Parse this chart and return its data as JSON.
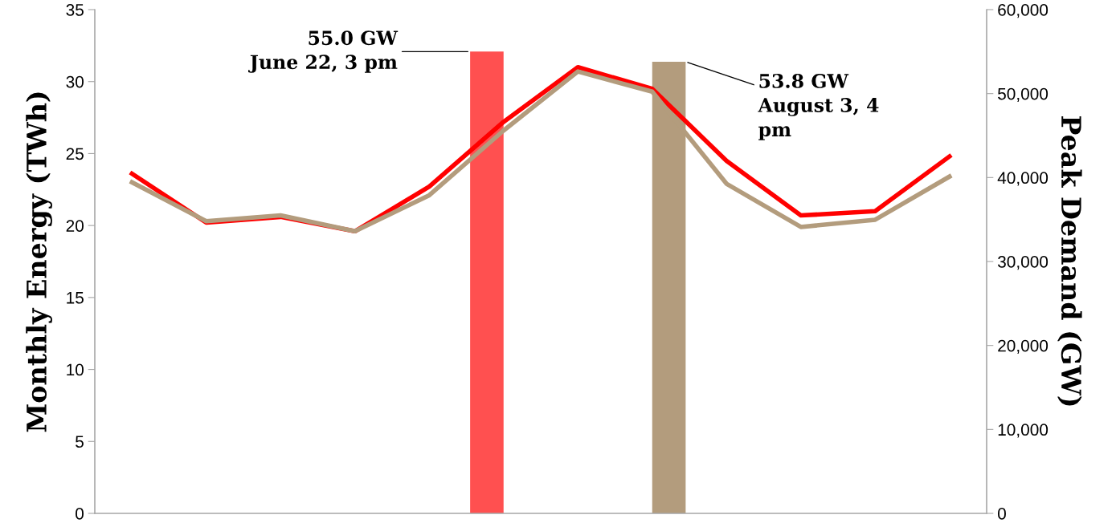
{
  "chart_data": {
    "type": "line",
    "ylabel": "Monthly Energy (TWh)",
    "y2label": "Peak Demand (GW)",
    "categories": [
      null,
      null,
      null,
      null,
      null,
      null,
      null,
      null,
      null,
      null,
      null,
      null
    ],
    "series": [
      {
        "type": "bar",
        "axis": "y2",
        "color": "#ff5050",
        "values": [
          null,
          null,
          null,
          null,
          null,
          55000,
          null,
          null,
          null,
          null,
          null,
          null
        ]
      },
      {
        "type": "bar",
        "axis": "y2",
        "color": "#b39c7d",
        "values": [
          null,
          null,
          null,
          null,
          null,
          null,
          null,
          53800,
          null,
          null,
          null,
          null
        ]
      },
      {
        "color": "#ff0000",
        "values": [
          23.6,
          20.2,
          20.6,
          19.6,
          22.7,
          27.2,
          31.0,
          29.5,
          24.5,
          20.7,
          21.0,
          24.8
        ]
      },
      {
        "color": "#b39c7d",
        "values": [
          23.0,
          20.3,
          20.7,
          19.6,
          22.1,
          26.6,
          30.7,
          29.3,
          22.9,
          19.9,
          20.4,
          23.4
        ]
      }
    ],
    "ylim": [
      0,
      35
    ],
    "yticks": [
      0,
      5,
      10,
      15,
      20,
      25,
      30,
      35
    ],
    "y2lim": [
      0,
      60000
    ],
    "y2ticks": [
      {
        "value": 0,
        "label": "0"
      },
      {
        "value": 10000,
        "label": "10,000"
      },
      {
        "value": 20000,
        "label": "20,000"
      },
      {
        "value": 30000,
        "label": "30,000"
      },
      {
        "value": 40000,
        "label": "40,000"
      },
      {
        "value": 50000,
        "label": "50,000"
      },
      {
        "value": 60000,
        "label": "60,000"
      }
    ],
    "annotations": [
      "55.0 GW\nJune 22, 3 pm",
      "53.8 GW\nAugust 3, 4\npm"
    ],
    "grid": false,
    "legend": false,
    "tick_labels": "y"
  }
}
